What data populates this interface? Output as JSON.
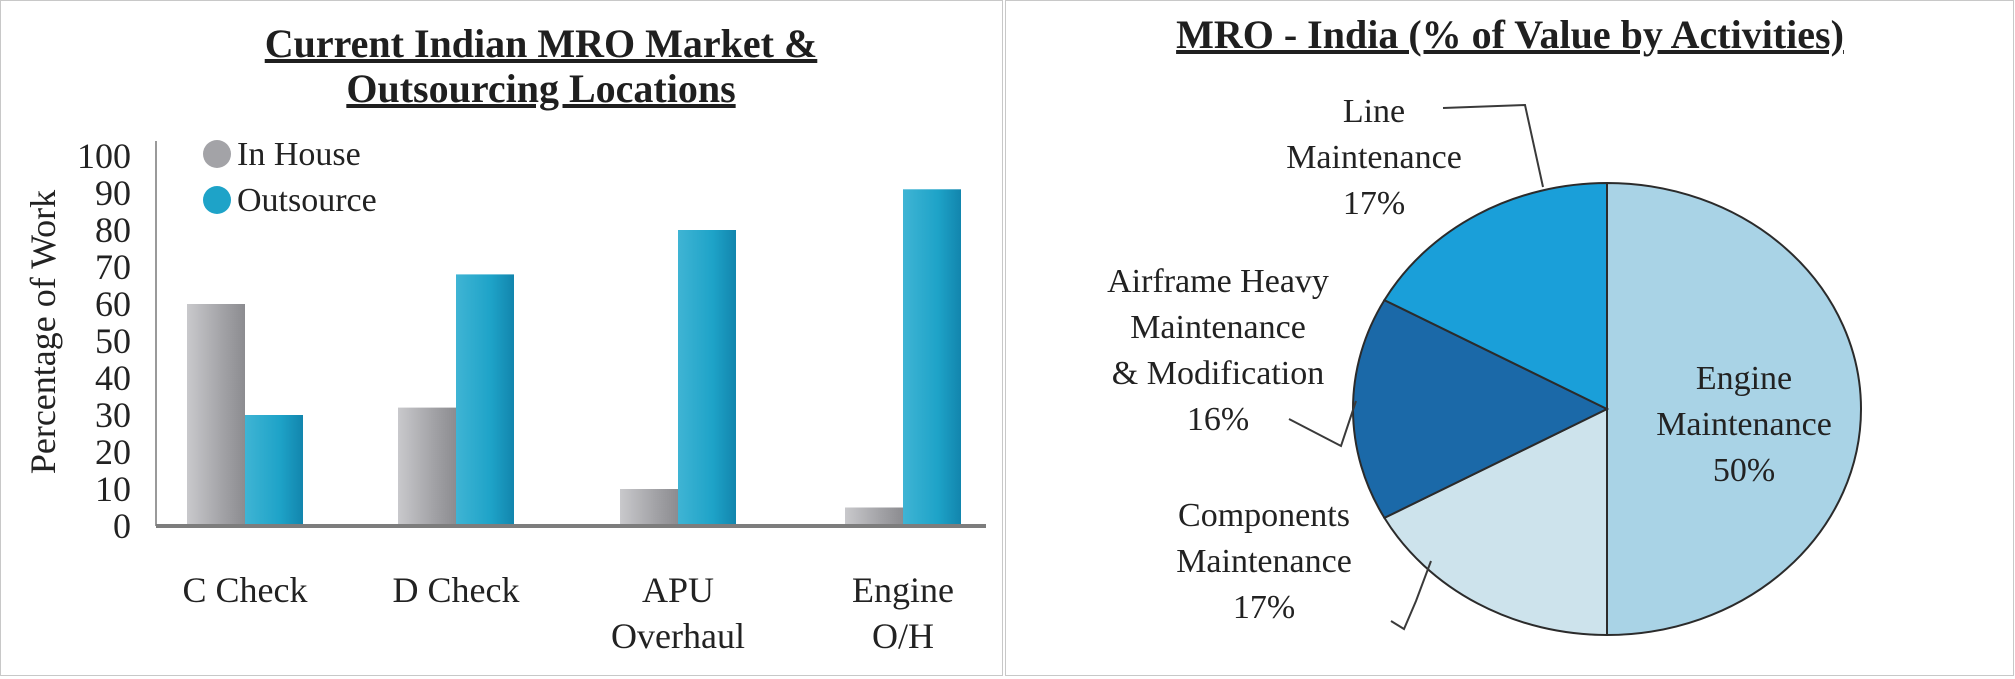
{
  "chart_data": [
    {
      "type": "bar",
      "title_lines": [
        "Current Indian MRO Market &",
        "Outsourcing Locations"
      ],
      "ylabel": "Percentage of Work",
      "xlabel": "",
      "ylim": [
        0,
        100
      ],
      "yticks": [
        0,
        10,
        20,
        30,
        40,
        50,
        60,
        70,
        80,
        90,
        100
      ],
      "categories": [
        [
          "C Check"
        ],
        [
          "D Check"
        ],
        [
          "APU",
          "Overhaul"
        ],
        [
          "Engine",
          "O/H"
        ]
      ],
      "series": [
        {
          "name": "In House",
          "color": "#a3a3a7",
          "values": [
            60,
            32,
            10,
            5
          ]
        },
        {
          "name": "Outsource",
          "color": "#1ea3c8",
          "values": [
            30,
            68,
            80,
            91
          ]
        }
      ],
      "legend_position": "top-left",
      "grid": false
    },
    {
      "type": "pie",
      "title": "MRO - India (% of Value by Activities)",
      "slices": [
        {
          "label_lines": [
            "Engine",
            "Maintenance"
          ],
          "value": 50,
          "pct_label": "50%",
          "color": "#a9d3e6"
        },
        {
          "label_lines": [
            "Components",
            "Maintenance"
          ],
          "value": 17,
          "pct_label": "17%",
          "color": "#cde3ec"
        },
        {
          "label_lines": [
            "Airframe Heavy",
            "Maintenance",
            "& Modification"
          ],
          "value": 16,
          "pct_label": "16%",
          "color": "#1b69a8"
        },
        {
          "label_lines": [
            "Line",
            "Maintenance"
          ],
          "value": 17,
          "pct_label": "17%",
          "color": "#1a9fd9"
        }
      ]
    }
  ]
}
